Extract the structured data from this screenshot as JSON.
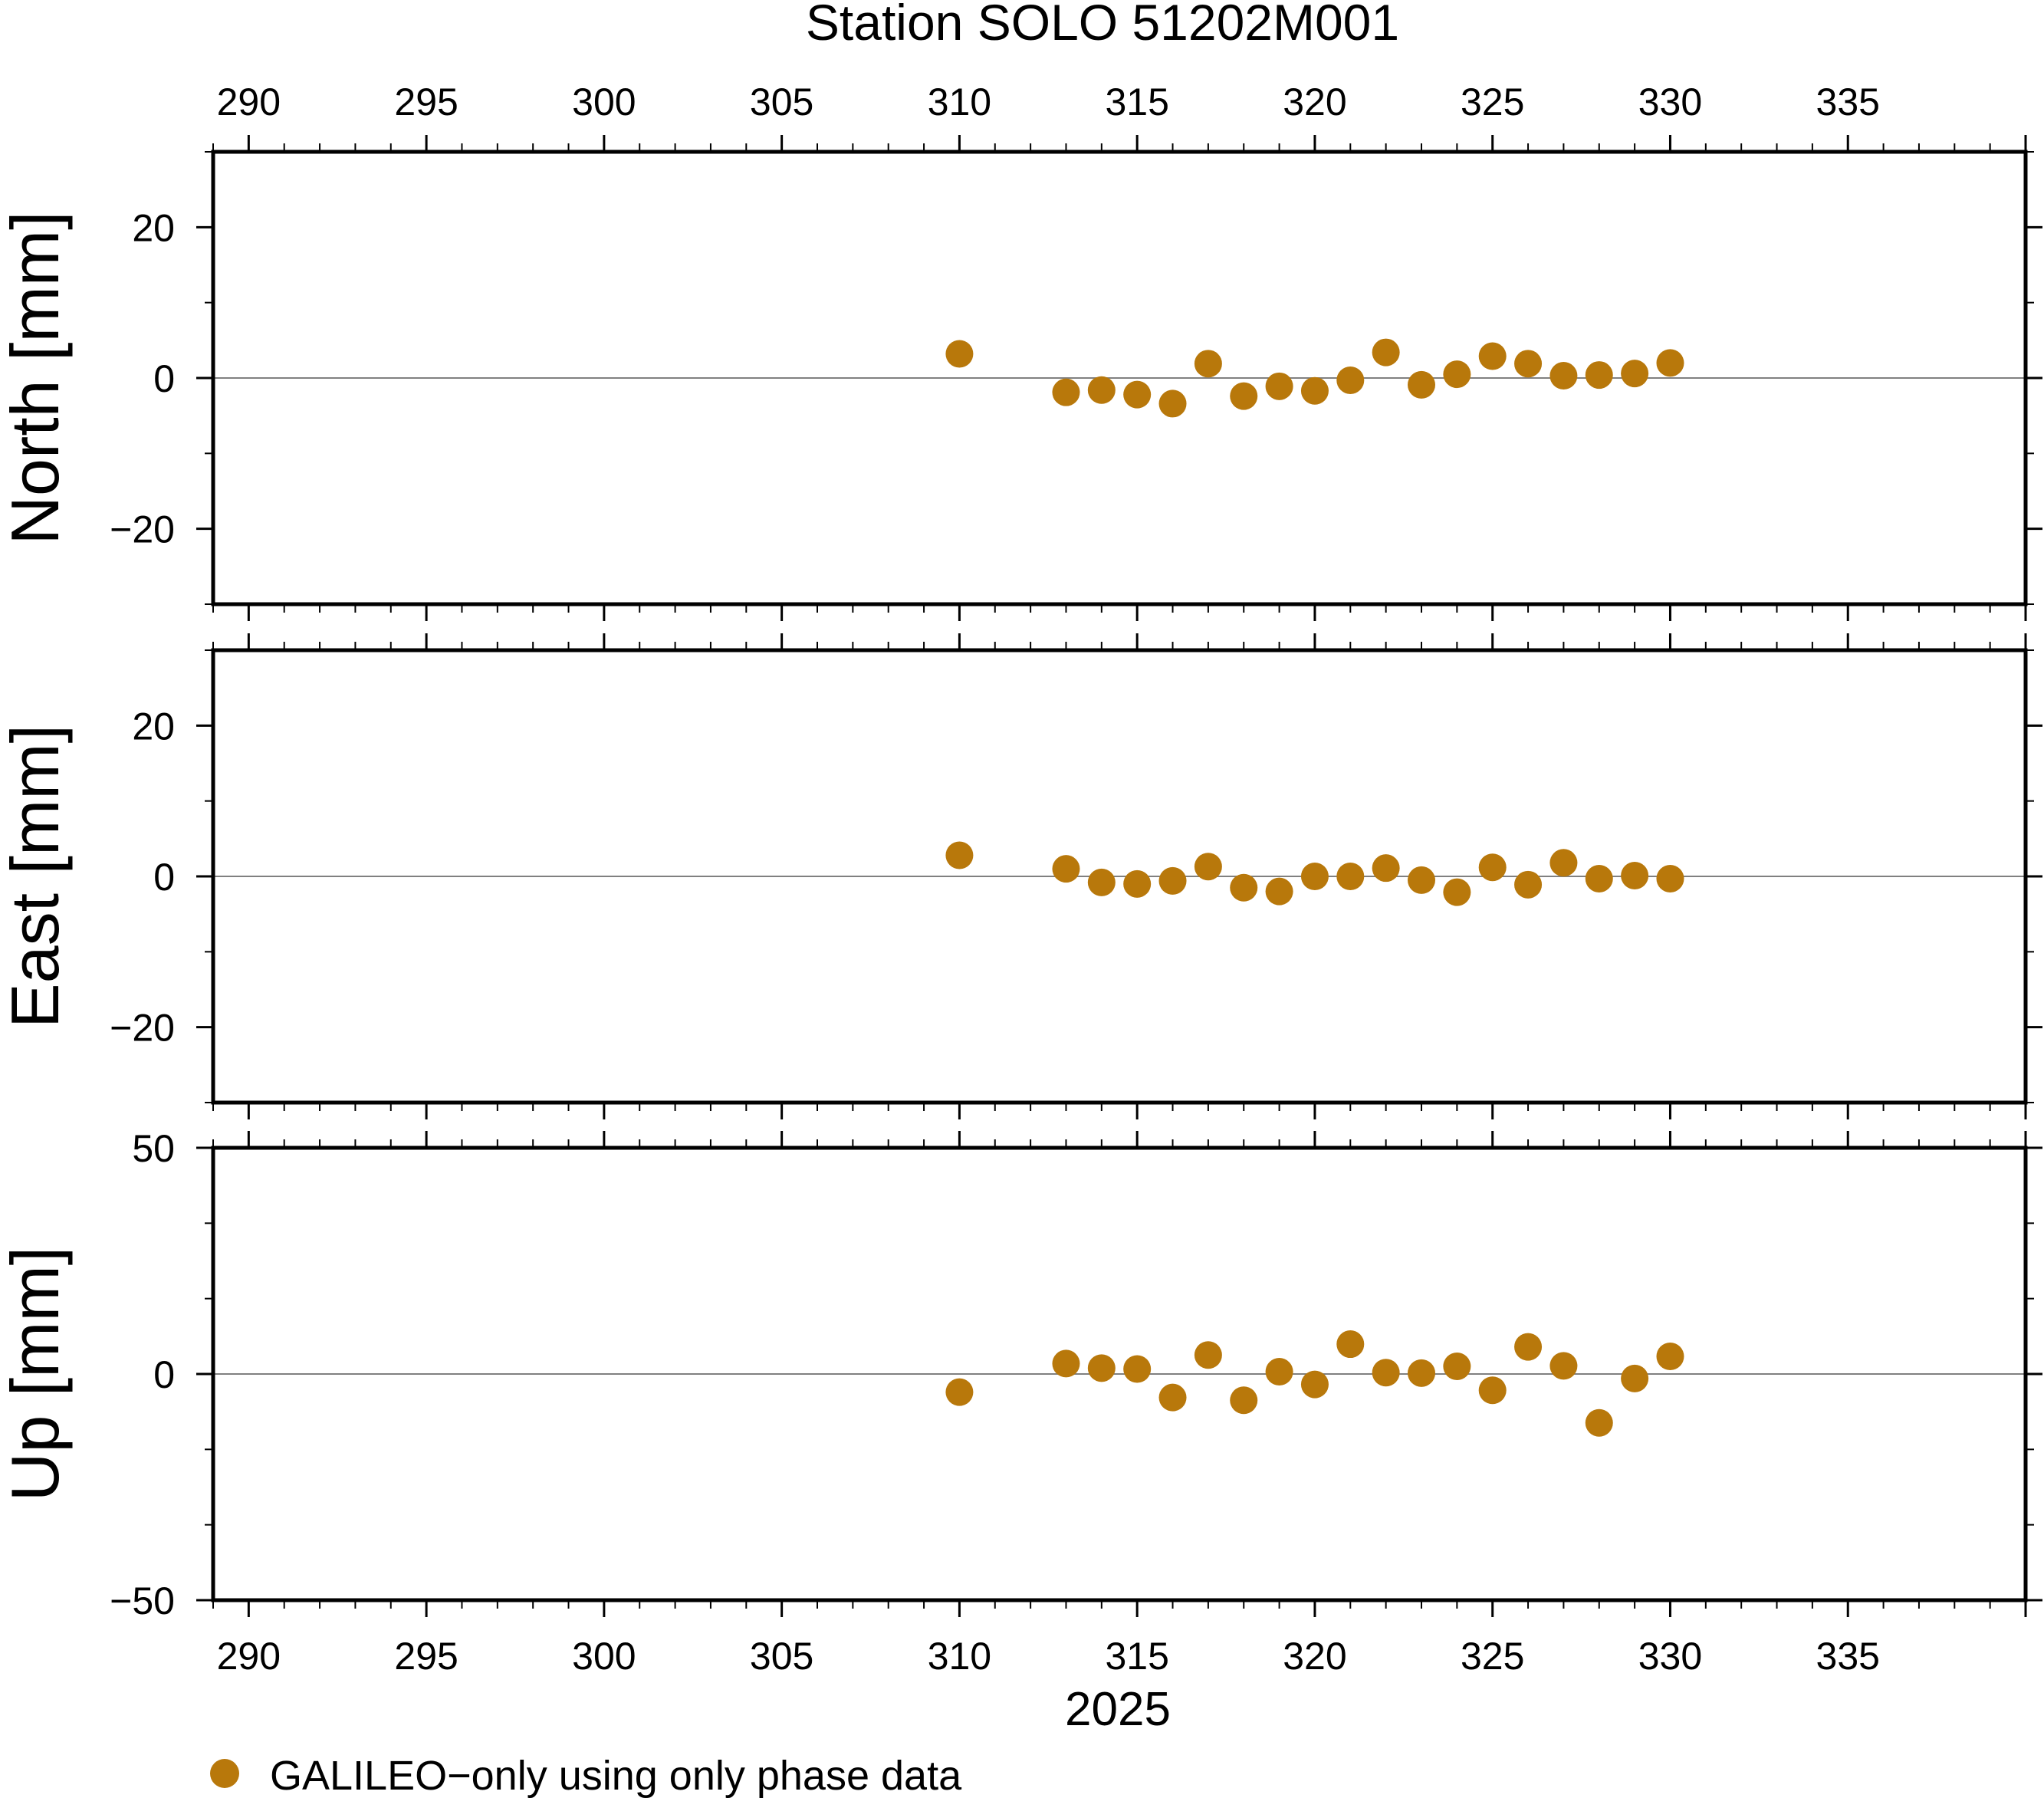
{
  "chart_data": {
    "type": "scatter",
    "title": "Station SOLO 51202M001",
    "xlabel": "2025",
    "xlim": [
      289,
      340
    ],
    "xticks": [
      290,
      295,
      300,
      305,
      310,
      315,
      320,
      325,
      330,
      335
    ],
    "xtick_labels": [
      "290",
      "295",
      "300",
      "305",
      "310",
      "315",
      "320",
      "325",
      "330",
      "335"
    ],
    "x": [
      310,
      313,
      314,
      315,
      316,
      317,
      318,
      319,
      320,
      321,
      322,
      323,
      324,
      325,
      326,
      327,
      328,
      329,
      330
    ],
    "marker_color": "#b8780b",
    "legend": {
      "label": "GALILEO−only using only phase data",
      "placement": "bottom-left"
    },
    "panels": [
      {
        "ylabel": "North [mm]",
        "ylim": [
          -30,
          30
        ],
        "yticks": [
          -20,
          0,
          20
        ],
        "ytick_labels": [
          "−20",
          "0",
          "20"
        ],
        "values": [
          3.2,
          -1.9,
          -1.6,
          -2.2,
          -3.4,
          1.9,
          -2.4,
          -1.1,
          -1.7,
          -0.3,
          3.4,
          -0.9,
          0.5,
          2.9,
          1.9,
          0.3,
          0.4,
          0.6,
          2.0
        ]
      },
      {
        "ylabel": "East [mm]",
        "ylim": [
          -30,
          30
        ],
        "yticks": [
          -20,
          0,
          20
        ],
        "ytick_labels": [
          "−20",
          "0",
          "20"
        ],
        "values": [
          2.8,
          1.0,
          -0.8,
          -1.0,
          -0.6,
          1.3,
          -1.5,
          -2.0,
          0.0,
          0.0,
          1.1,
          -0.5,
          -2.1,
          1.2,
          -1.1,
          1.8,
          -0.3,
          0.1,
          -0.3
        ]
      },
      {
        "ylabel": "Up [mm]",
        "ylim": [
          -50,
          50
        ],
        "yticks": [
          -50,
          0,
          50
        ],
        "ytick_labels": [
          "−50",
          "0",
          "50"
        ],
        "values": [
          -4.0,
          2.3,
          1.3,
          1.1,
          -5.2,
          4.2,
          -5.8,
          0.5,
          -2.3,
          6.6,
          0.3,
          0.2,
          1.7,
          -3.6,
          6.0,
          1.8,
          -10.8,
          -1.0,
          3.9
        ]
      }
    ]
  }
}
